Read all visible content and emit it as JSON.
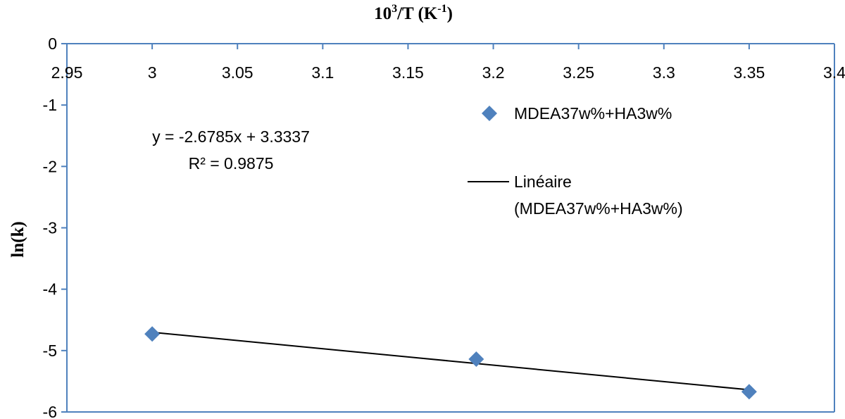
{
  "chart_data": {
    "type": "scatter",
    "xlabel": "10³/T (K⁻¹)",
    "ylabel": "ln(k)",
    "xlim": [
      2.95,
      3.4
    ],
    "ylim": [
      -6,
      0
    ],
    "x_ticks": [
      "2.95",
      "3",
      "3.05",
      "3.1",
      "3.15",
      "3.2",
      "3.25",
      "3.3",
      "3.35",
      "3.4"
    ],
    "y_ticks": [
      "0",
      "-1",
      "-2",
      "-3",
      "-4",
      "-5",
      "-6"
    ],
    "x_axis_position": "top",
    "grid": false,
    "series": [
      {
        "name": "MDEA37w%+HA3w%",
        "marker": "diamond",
        "color": "#4f81bd",
        "points": [
          {
            "x": 3.0,
            "y": -4.73
          },
          {
            "x": 3.19,
            "y": -5.14
          },
          {
            "x": 3.35,
            "y": -5.67
          }
        ]
      }
    ],
    "trendline": {
      "name_line1": "Linéaire",
      "name_line2": "(MDEA37w%+HA3w%)",
      "slope": -2.6785,
      "intercept": 3.3337,
      "x_range": [
        3.0,
        3.35
      ],
      "color": "#000000",
      "equation": "y = -2.6785x + 3.3337",
      "r_squared": "R² = 0.9875"
    },
    "legend_placement": "right"
  },
  "colors": {
    "axis": "#4f81bd",
    "marker": "#4f81bd",
    "trendline": "#000000"
  }
}
